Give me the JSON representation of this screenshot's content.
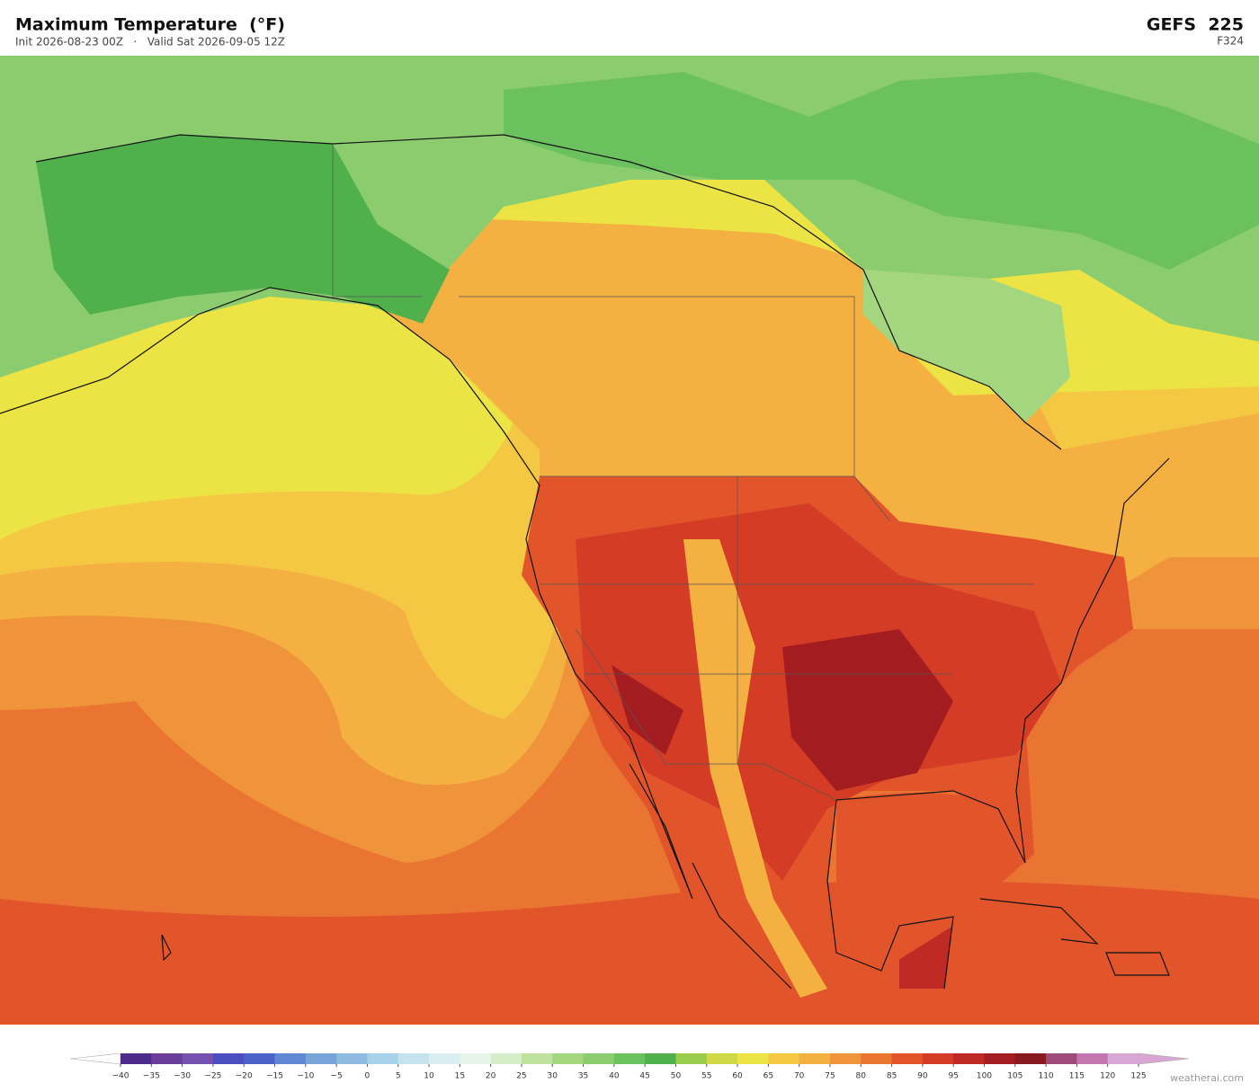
{
  "header": {
    "title": "Maximum Temperature  (°F)",
    "subtitle": "Init 2026-08-23 00Z   ·   Valid Sat 2026-09-05 12Z",
    "model": "GEFS  225",
    "forecast_hour": "F324"
  },
  "colorbar": {
    "ticks": [
      {
        "value": -40,
        "label": "−40"
      },
      {
        "value": -35,
        "label": "−35"
      },
      {
        "value": -30,
        "label": "−30"
      },
      {
        "value": -25,
        "label": "−25"
      },
      {
        "value": -20,
        "label": "−20"
      },
      {
        "value": -15,
        "label": "−15"
      },
      {
        "value": -10,
        "label": "−10"
      },
      {
        "value": -5,
        "label": "−5"
      },
      0,
      5,
      10,
      15,
      20,
      25,
      30,
      35,
      40,
      45,
      50,
      55,
      60,
      65,
      70,
      75,
      80,
      85,
      90,
      95,
      100,
      105,
      110,
      115,
      120,
      125
    ],
    "colors": [
      "#4b2a8c",
      "#6a3d9a",
      "#7552b0",
      "#4b4fc0",
      "#4d62c9",
      "#5f87d2",
      "#78a3d8",
      "#8fbadf",
      "#a8d2ea",
      "#c4e3ef",
      "#daeef2",
      "#e6f4ea",
      "#d5ecc8",
      "#bfe39f",
      "#a3d67f",
      "#8acc6e",
      "#6cc15f",
      "#50b04b",
      "#9acb4a",
      "#cfd846",
      "#ece444",
      "#f5c844",
      "#f4b040",
      "#ef943a",
      "#ea7532",
      "#e2552b",
      "#d43c26",
      "#bf2a24",
      "#a31c20",
      "#861a20",
      "#a04a7a",
      "#c276ad",
      "#d8a6d2"
    ],
    "extend_colors": [
      "#ffffff",
      "#d8a6d2"
    ]
  },
  "footer": {
    "watermark": "weatherai.com"
  }
}
